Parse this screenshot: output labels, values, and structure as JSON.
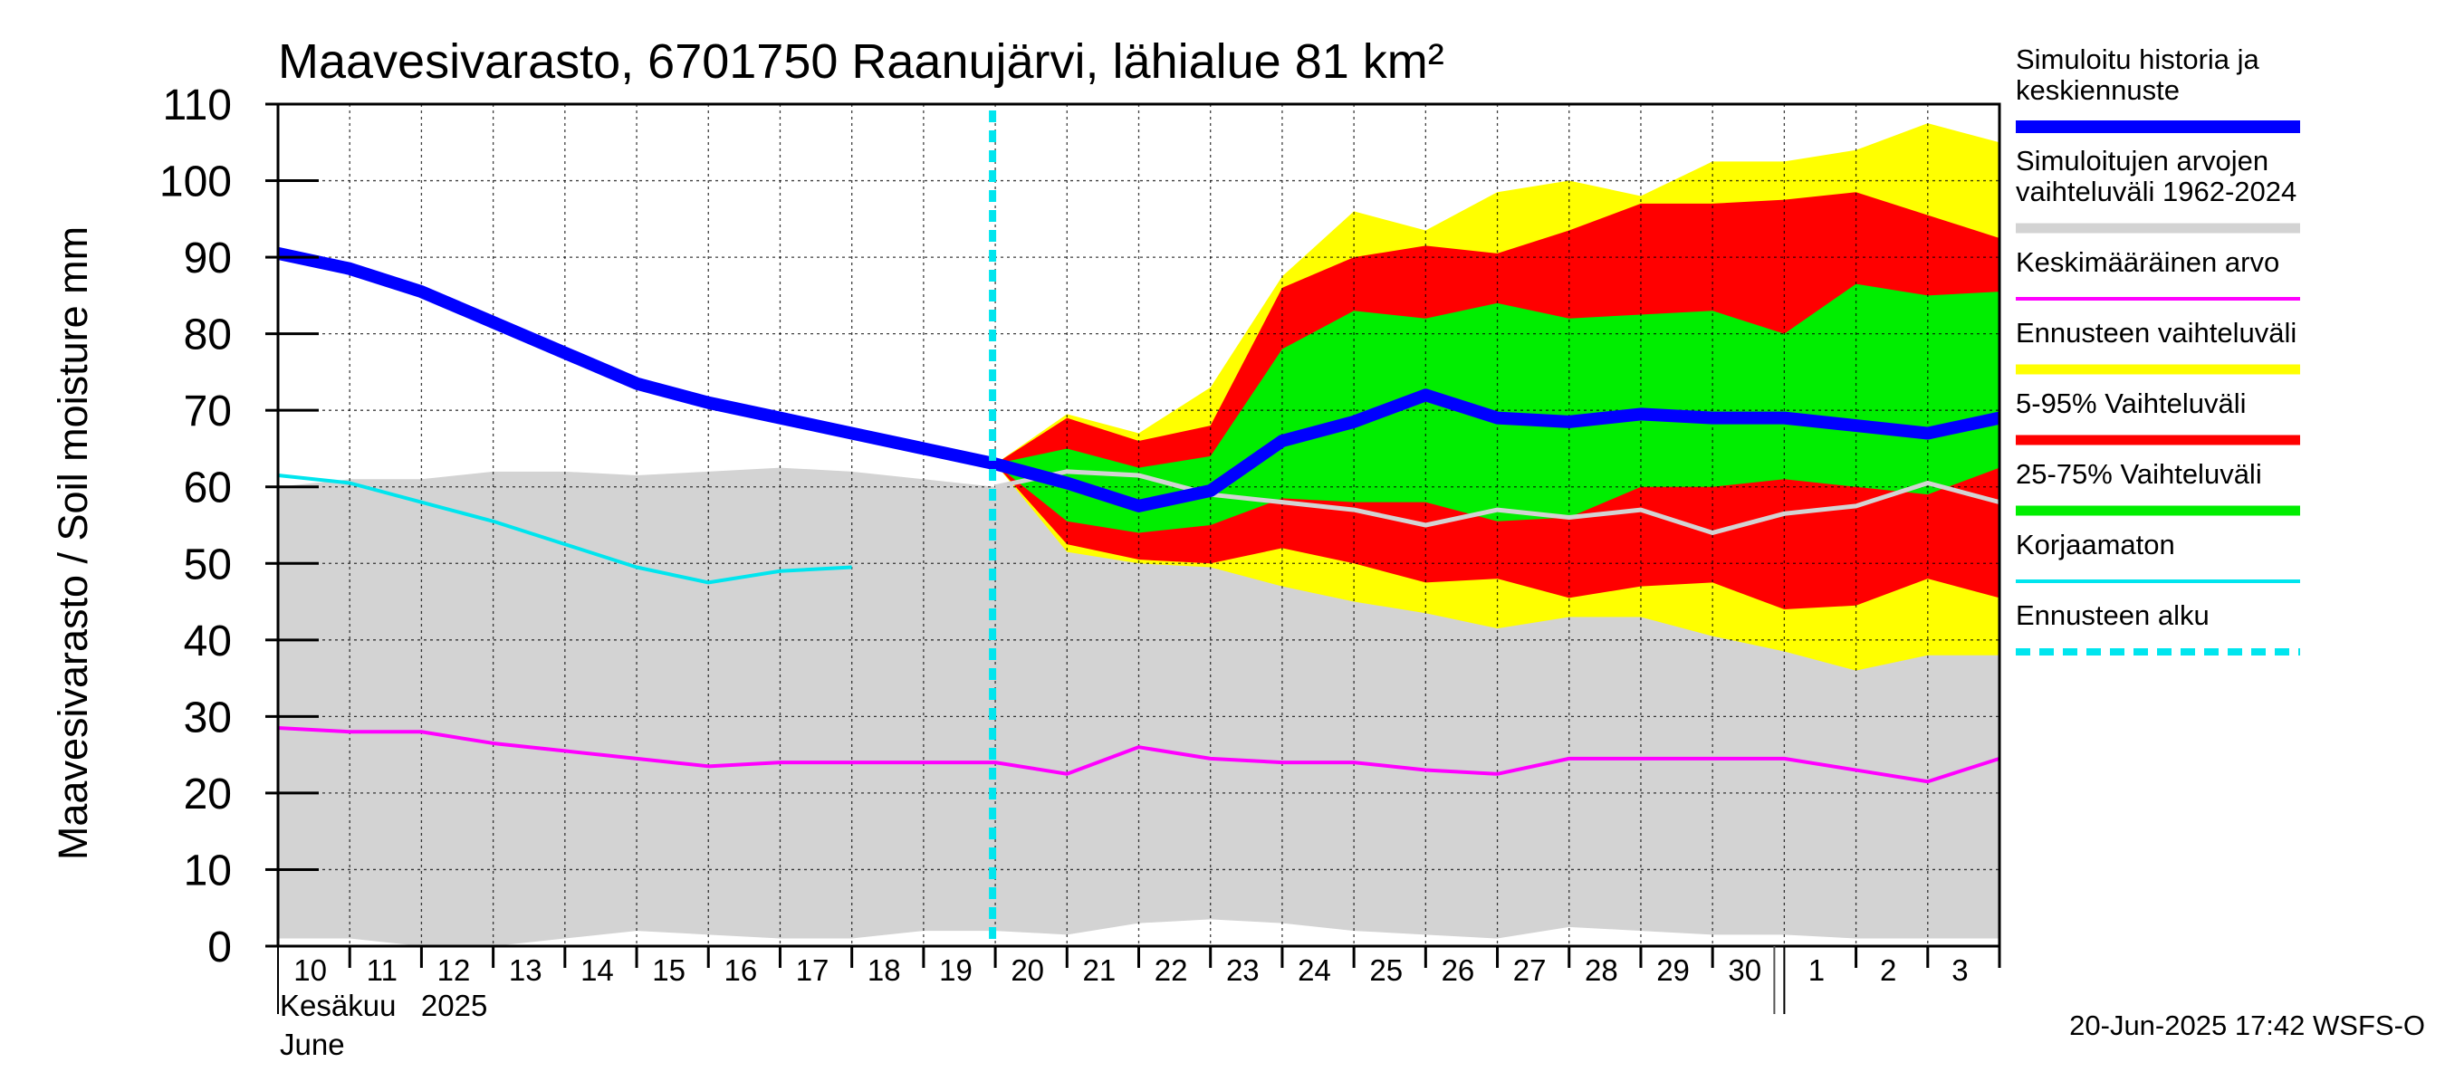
{
  "chart_data": {
    "type": "area",
    "title": "Maavesivarasto, 6701750 Raanujärvi, lähialue 81 km²",
    "ylabel": "Maavesivarasto / Soil moisture   mm",
    "ylim": [
      0,
      110
    ],
    "yticks": [
      0,
      10,
      20,
      30,
      40,
      50,
      60,
      70,
      80,
      90,
      100,
      110
    ],
    "x_dates": [
      "2025-06-10",
      "2025-06-11",
      "2025-06-12",
      "2025-06-13",
      "2025-06-14",
      "2025-06-15",
      "2025-06-16",
      "2025-06-17",
      "2025-06-18",
      "2025-06-19",
      "2025-06-20",
      "2025-06-21",
      "2025-06-22",
      "2025-06-23",
      "2025-06-24",
      "2025-06-25",
      "2025-06-26",
      "2025-06-27",
      "2025-06-28",
      "2025-06-29",
      "2025-06-30",
      "2025-07-01",
      "2025-07-02",
      "2025-07-03",
      "2025-07-04"
    ],
    "x_tick_labels": [
      "10",
      "11",
      "12",
      "13",
      "14",
      "15",
      "16",
      "17",
      "18",
      "19",
      "20",
      "21",
      "22",
      "23",
      "24",
      "25",
      "26",
      "27",
      "28",
      "29",
      "30",
      "1",
      "2",
      "3"
    ],
    "month_labels": {
      "line1": "Kesäkuu   2025",
      "line2": "June"
    },
    "grid": true,
    "legend_position": "right",
    "forecast_start": "2025-06-20",
    "series": [
      {
        "name": "Simuloitujen arvojen vaihteluväli 1962-2024",
        "kind": "band",
        "color": "#d3d3d3",
        "lower": [
          1,
          1,
          0,
          0,
          1,
          2,
          1.5,
          1,
          1,
          2,
          2,
          1.5,
          3,
          3.5,
          3,
          2,
          1.5,
          1,
          2.5,
          2,
          1.5,
          1.5,
          1,
          1,
          1
        ],
        "upper": [
          60,
          61,
          61,
          62,
          62,
          61.5,
          62,
          62.5,
          62,
          61,
          60,
          62,
          61.5,
          60,
          58,
          56,
          54,
          54,
          54,
          53.5,
          52,
          49,
          45,
          42,
          40
        ]
      },
      {
        "name": "Ennusteen vaihteluväli",
        "kind": "band",
        "color": "#ffff00",
        "x_start_index": 10,
        "lower": [
          63,
          51.5,
          50,
          49.5,
          47,
          45,
          43.5,
          41.5,
          43,
          43,
          40.5,
          38.5,
          36,
          38,
          38
        ],
        "upper": [
          63,
          69.5,
          67,
          73,
          87.5,
          96,
          93.5,
          98.5,
          100,
          98,
          102.5,
          102.5,
          104,
          107.5,
          105
        ]
      },
      {
        "name": "5-95% Vaihteluväli",
        "kind": "band",
        "color": "#ff0000",
        "x_start_index": 10,
        "lower": [
          63,
          52.5,
          50.5,
          50,
          52,
          50,
          47.5,
          48,
          45.5,
          47,
          47.5,
          44,
          44.5,
          48,
          45.5
        ],
        "upper": [
          63,
          69,
          66,
          68,
          86,
          90,
          91.5,
          90.5,
          93.5,
          97,
          97,
          97.5,
          98.5,
          95.5,
          92.5
        ]
      },
      {
        "name": "25-75% Vaihteluväli",
        "kind": "band",
        "color": "#00ee00",
        "x_start_index": 10,
        "lower": [
          63,
          55.5,
          54,
          55,
          58.5,
          58,
          58,
          55.5,
          56,
          60,
          60,
          61,
          60,
          59,
          62.5
        ],
        "upper": [
          63,
          65,
          62.5,
          64,
          78,
          83,
          82,
          84,
          82,
          82.5,
          83,
          80,
          86.5,
          85,
          85.5
        ]
      },
      {
        "name": "Keskimääräinen arvo",
        "kind": "line",
        "color": "#ff00ff",
        "values": [
          28.5,
          28,
          28,
          26.5,
          25.5,
          24.5,
          23.5,
          24,
          24,
          24,
          24,
          22.5,
          26,
          24.5,
          24,
          24,
          23,
          22.5,
          24.5,
          24.5,
          24.5,
          24.5,
          23,
          21.5,
          24.5
        ]
      },
      {
        "name": "Korjaamaton",
        "kind": "line",
        "color": "#00e5ee",
        "values": [
          61.5,
          60.5,
          58,
          55.5,
          52.5,
          49.5,
          47.5,
          49,
          49.5
        ]
      },
      {
        "name": "Forecast median (unlabelled)",
        "kind": "line",
        "color": "#d3d3d3",
        "x_start_index": 10,
        "values": [
          60,
          62,
          61.5,
          59,
          58,
          57,
          55,
          57,
          56,
          57,
          54,
          56.5,
          57.5,
          60.5,
          58
        ]
      },
      {
        "name": "Simuloitu historia ja keskiennuste",
        "kind": "line",
        "color": "#0000ff",
        "values": [
          90.5,
          88.5,
          85.5,
          81.5,
          77.5,
          73.5,
          71,
          69,
          67,
          65,
          63,
          60.5,
          57.5,
          59.5,
          66,
          68.5,
          72,
          69,
          68.5,
          69.5,
          69,
          69,
          68,
          67,
          69
        ]
      }
    ]
  },
  "legend": {
    "items": [
      {
        "label_lines": [
          "Simuloitu historia ja",
          "keskiennuste"
        ],
        "color": "#0000ff",
        "style": "thick"
      },
      {
        "label_lines": [
          "Simuloitujen arvojen",
          "vaihteluväli 1962-2024"
        ],
        "color": "#d3d3d3",
        "style": "medium"
      },
      {
        "label_lines": [
          "Keskimääräinen arvo"
        ],
        "color": "#ff00ff",
        "style": "thin"
      },
      {
        "label_lines": [
          "Ennusteen vaihteluväli"
        ],
        "color": "#ffff00",
        "style": "medium"
      },
      {
        "label_lines": [
          "5-95% Vaihteluväli"
        ],
        "color": "#ff0000",
        "style": "medium"
      },
      {
        "label_lines": [
          "25-75% Vaihteluväli"
        ],
        "color": "#00ee00",
        "style": "medium"
      },
      {
        "label_lines": [
          "Korjaamaton"
        ],
        "color": "#00e5ee",
        "style": "thin"
      },
      {
        "label_lines": [
          "Ennusteen alku"
        ],
        "color": "#00e5ee",
        "style": "dashed"
      }
    ]
  },
  "footer": {
    "timestamp": "20-Jun-2025 17:42 WSFS-O"
  }
}
